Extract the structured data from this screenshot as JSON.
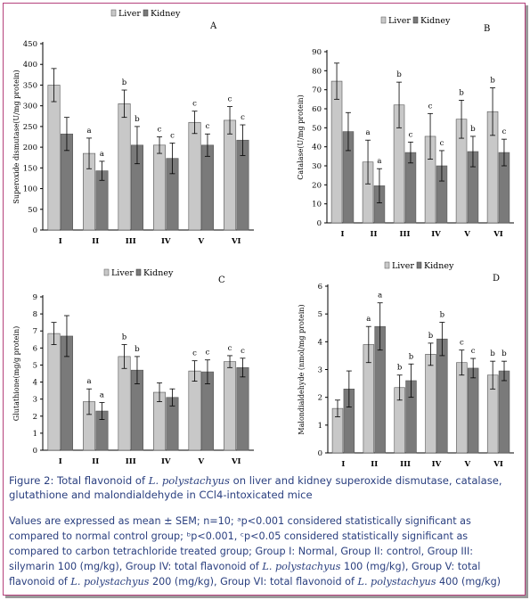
{
  "legend": {
    "liver": "Liver",
    "kidney": "Kidney"
  },
  "colors": {
    "liver": "#c8c8c8",
    "kidney": "#7a7a7a",
    "axis": "#000000",
    "text": "#2a3f7f",
    "border": "#b5417c"
  },
  "caption": {
    "prefix": "Figure 2: Total flavonoid of ",
    "species": "L. polystachyus",
    "suffix": " on liver and kidney superoxide dismutase, catalase, glutathione and malondialdehyde in CCl4-intoxicated mice"
  },
  "note": {
    "part1": "Values are expressed as mean ± SEM; n=10; ᵃp<0.001 considered statistically significant as compared to normal control group; ᵇp<0.001, ᶜp<0.05 considered statistically significant as compared to carbon tetrachloride treated group; Group I: Normal, Group II: control, Group III: silymarin 100 (mg/kg), Group IV: total flavonoid of ",
    "species1": "L. polystachyus",
    "part2": " 100 (mg/kg), Group V: total flavonoid of ",
    "species2": "L. polystachyus",
    "part3": "  200 (mg/kg), Group VI: total flavonoid of ",
    "species3": "L. polystachyus",
    "part4": " 400 (mg/kg)"
  },
  "chart_data": [
    {
      "type": "bar",
      "panel": "A",
      "ylabel": "Superoxide dismutase(U/mg protein)",
      "ylim": [
        0,
        450
      ],
      "yticks": [
        0,
        50,
        100,
        150,
        200,
        250,
        300,
        350,
        400,
        450
      ],
      "categories": [
        "I",
        "II",
        "III",
        "IV",
        "V",
        "VI"
      ],
      "series": [
        {
          "name": "Liver",
          "values": [
            350,
            185,
            305,
            205,
            260,
            265
          ],
          "errors": [
            40,
            37,
            33,
            20,
            27,
            33
          ],
          "labels": [
            "",
            "a",
            "b",
            "c",
            "c",
            "c"
          ]
        },
        {
          "name": "Kidney",
          "values": [
            232,
            143,
            205,
            173,
            205,
            217
          ],
          "errors": [
            40,
            23,
            45,
            37,
            27,
            37
          ],
          "labels": [
            "",
            "a",
            "b",
            "c",
            "c",
            "c"
          ]
        }
      ]
    },
    {
      "type": "bar",
      "panel": "B",
      "ylabel": "Catalase(U/mg protein)",
      "ylim": [
        0,
        90
      ],
      "yticks": [
        0,
        10,
        20,
        30,
        40,
        50,
        60,
        70,
        80,
        90
      ],
      "categories": [
        "I",
        "II",
        "III",
        "IV",
        "V",
        "VI"
      ],
      "series": [
        {
          "name": "Liver",
          "values": [
            74.5,
            32,
            62,
            45.5,
            54.5,
            58.5
          ],
          "errors": [
            9.5,
            11.5,
            12,
            12,
            10,
            12.5
          ],
          "labels": [
            "",
            "a",
            "b",
            "c",
            "b",
            "b"
          ]
        },
        {
          "name": "Kidney",
          "values": [
            48,
            19.5,
            37,
            30,
            37.5,
            37
          ],
          "errors": [
            10,
            9,
            5.5,
            8,
            8,
            7
          ],
          "labels": [
            "",
            "a",
            "c",
            "c",
            "b",
            "c"
          ]
        }
      ]
    },
    {
      "type": "bar",
      "panel": "C",
      "ylabel": "Glutathione(mg/g protein)",
      "ylim": [
        0,
        9
      ],
      "yticks": [
        0,
        1,
        2,
        3,
        4,
        5,
        6,
        7,
        8,
        9
      ],
      "categories": [
        "I",
        "II",
        "III",
        "IV",
        "V",
        "VI"
      ],
      "series": [
        {
          "name": "Liver",
          "values": [
            6.85,
            2.85,
            5.5,
            3.4,
            4.65,
            5.2
          ],
          "errors": [
            0.65,
            0.75,
            0.7,
            0.55,
            0.6,
            0.35
          ],
          "labels": [
            "",
            "a",
            "b",
            "",
            "c",
            "c"
          ]
        },
        {
          "name": "Kidney",
          "values": [
            6.7,
            2.3,
            4.7,
            3.1,
            4.6,
            4.85
          ],
          "errors": [
            1.2,
            0.5,
            0.8,
            0.5,
            0.7,
            0.55
          ],
          "labels": [
            "",
            "a",
            "b",
            "",
            "c",
            "c"
          ]
        }
      ]
    },
    {
      "type": "bar",
      "panel": "D",
      "ylabel": "Malondialdehyde (nmol/mg protein)",
      "ylim": [
        0,
        6
      ],
      "yticks": [
        0,
        1,
        2,
        3,
        4,
        5,
        6
      ],
      "categories": [
        "I",
        "II",
        "III",
        "IV",
        "V",
        "VI"
      ],
      "series": [
        {
          "name": "Liver",
          "values": [
            1.6,
            3.9,
            2.35,
            3.55,
            3.25,
            2.8
          ],
          "errors": [
            0.3,
            0.65,
            0.45,
            0.4,
            0.45,
            0.5
          ],
          "labels": [
            "",
            "a",
            "b",
            "b",
            "c",
            "b"
          ]
        },
        {
          "name": "Kidney",
          "values": [
            2.3,
            4.55,
            2.6,
            4.1,
            3.05,
            2.95
          ],
          "errors": [
            0.65,
            0.85,
            0.6,
            0.6,
            0.35,
            0.35
          ],
          "labels": [
            "",
            "a",
            "b",
            "b",
            "c",
            "b"
          ]
        }
      ]
    }
  ]
}
